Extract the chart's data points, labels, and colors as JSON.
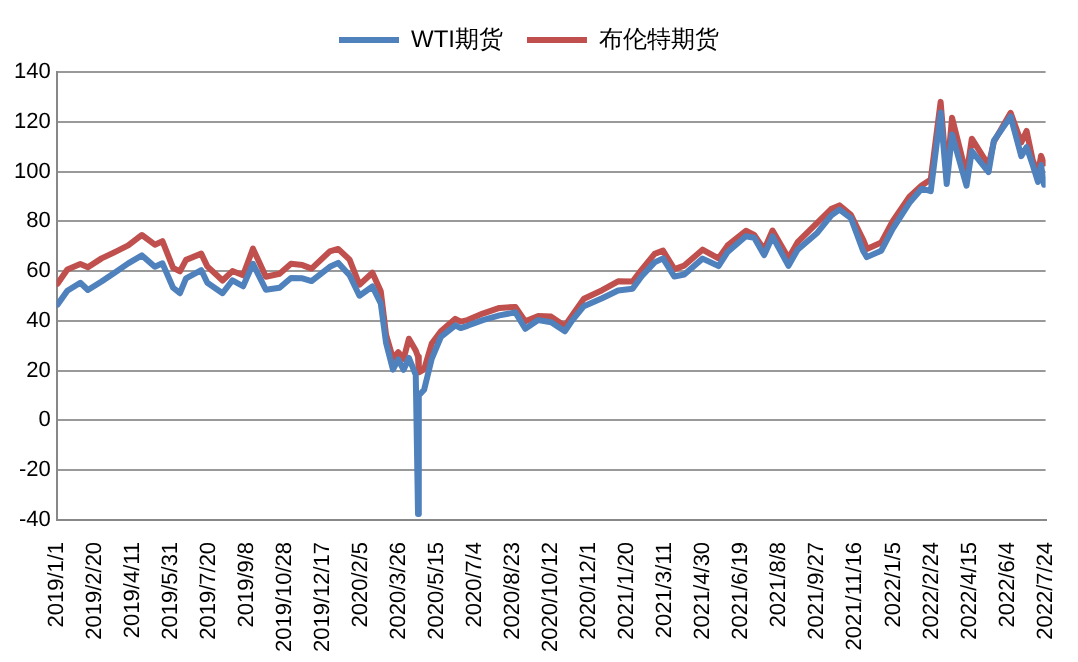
{
  "chart_data": {
    "type": "line",
    "x": [
      "2019-01-02",
      "2019-01-15",
      "2019-02-01",
      "2019-02-11",
      "2019-03-01",
      "2019-03-21",
      "2019-04-05",
      "2019-04-23",
      "2019-05-10",
      "2019-05-20",
      "2019-06-03",
      "2019-06-12",
      "2019-06-20",
      "2019-07-10",
      "2019-07-18",
      "2019-08-07",
      "2019-08-20",
      "2019-09-03",
      "2019-09-16",
      "2019-10-03",
      "2019-10-21",
      "2019-11-05",
      "2019-11-20",
      "2019-12-02",
      "2019-12-26",
      "2020-01-06",
      "2020-01-21",
      "2020-02-03",
      "2020-02-20",
      "2020-03-02",
      "2020-03-09",
      "2020-03-18",
      "2020-03-25",
      "2020-04-01",
      "2020-04-08",
      "2020-04-17",
      "2020-04-20",
      "2020-04-21",
      "2020-04-28",
      "2020-05-08",
      "2020-05-20",
      "2020-06-08",
      "2020-06-15",
      "2020-06-24",
      "2020-07-14",
      "2020-08-05",
      "2020-08-26",
      "2020-09-08",
      "2020-09-25",
      "2020-10-12",
      "2020-10-30",
      "2020-11-09",
      "2020-11-24",
      "2020-12-18",
      "2021-01-08",
      "2021-01-27",
      "2021-02-08",
      "2021-02-25",
      "2021-03-08",
      "2021-03-23",
      "2021-04-05",
      "2021-04-29",
      "2021-05-20",
      "2021-06-01",
      "2021-06-25",
      "2021-07-06",
      "2021-07-19",
      "2021-07-30",
      "2021-08-20",
      "2021-09-01",
      "2021-09-27",
      "2021-10-15",
      "2021-10-26",
      "2021-11-10",
      "2021-11-26",
      "2021-12-01",
      "2021-12-20",
      "2022-01-04",
      "2022-01-26",
      "2022-02-11",
      "2022-02-23",
      "2022-03-08",
      "2022-03-16",
      "2022-03-23",
      "2022-04-11",
      "2022-04-18",
      "2022-05-10",
      "2022-05-17",
      "2022-06-08",
      "2022-06-22",
      "2022-06-29",
      "2022-07-07",
      "2022-07-14",
      "2022-07-18",
      "2022-07-22"
    ],
    "series": [
      {
        "name": "WTI期货",
        "color": "#4f81bd",
        "values": [
          46.5,
          52.1,
          55.3,
          52.4,
          55.8,
          59.9,
          63.1,
          66.3,
          61.7,
          63.1,
          53.3,
          51.1,
          57.1,
          60.4,
          55.3,
          51.1,
          56.3,
          53.9,
          62.9,
          52.5,
          53.3,
          57.2,
          57.1,
          56,
          61.7,
          63.3,
          58.3,
          50.1,
          53.8,
          47,
          31.1,
          20.4,
          24.5,
          20.3,
          25.1,
          18.3,
          -37.6,
          10,
          12.3,
          24.7,
          33.5,
          38.2,
          37.1,
          38,
          40.3,
          42.2,
          43.4,
          36.8,
          40.3,
          39.4,
          35.8,
          40.3,
          45.9,
          49.1,
          52.2,
          52.9,
          57.9,
          63.5,
          65.1,
          57.8,
          58.6,
          65,
          62,
          67.7,
          74,
          73.4,
          66.4,
          73.9,
          62.1,
          68.6,
          75.4,
          82.3,
          84.7,
          81.3,
          68.2,
          65.6,
          68.2,
          77,
          87.4,
          93.1,
          92.1,
          123.7,
          95,
          114.9,
          94.3,
          108.2,
          99.8,
          112.4,
          122.1,
          106.2,
          109.8,
          102.7,
          95.8,
          102.6,
          94.7
        ]
      },
      {
        "name": "布伦特期货",
        "color": "#c0504d",
        "values": [
          54.9,
          60.6,
          62.8,
          61.5,
          65.1,
          68,
          70.3,
          74.5,
          70.6,
          72,
          61.3,
          59.9,
          64.5,
          67,
          61.9,
          56.2,
          60,
          58.3,
          69,
          57.7,
          58.9,
          62.9,
          62.4,
          61,
          67.9,
          68.9,
          64.6,
          54.5,
          59.3,
          51.9,
          34.4,
          24.9,
          27.4,
          24.7,
          32.8,
          28.1,
          25.6,
          19.3,
          20.5,
          30.9,
          35.8,
          40.8,
          39.7,
          40.3,
          42.9,
          45.2,
          45.6,
          39.8,
          41.9,
          41.7,
          37.9,
          42.4,
          48.9,
          52.3,
          55.9,
          55.8,
          60.6,
          66.9,
          68.2,
          60.8,
          62.2,
          68.6,
          65.1,
          70.3,
          76.2,
          74.5,
          68.6,
          76.3,
          65.2,
          71.6,
          79.5,
          84.9,
          86.4,
          82.6,
          72.7,
          68.9,
          71.5,
          80,
          89.9,
          94.4,
          96.8,
          128,
          98,
          121.6,
          98.5,
          113.2,
          102.5,
          112,
          123.6,
          111.7,
          116.3,
          104.7,
          99.1,
          106.3,
          103.2
        ]
      }
    ],
    "xlim": [
      "2019-01-01",
      "2022-07-24"
    ],
    "xticks": [
      {
        "value": "2019-01-01",
        "label": "2019/1/1"
      },
      {
        "value": "2019-02-20",
        "label": "2019/2/20"
      },
      {
        "value": "2019-04-11",
        "label": "2019/4/11"
      },
      {
        "value": "2019-05-31",
        "label": "2019/5/31"
      },
      {
        "value": "2019-07-20",
        "label": "2019/7/20"
      },
      {
        "value": "2019-09-08",
        "label": "2019/9/8"
      },
      {
        "value": "2019-10-28",
        "label": "2019/10/28"
      },
      {
        "value": "2019-12-17",
        "label": "2019/12/17"
      },
      {
        "value": "2020-02-05",
        "label": "2020/2/5"
      },
      {
        "value": "2020-03-26",
        "label": "2020/3/26"
      },
      {
        "value": "2020-05-15",
        "label": "2020/5/15"
      },
      {
        "value": "2020-07-04",
        "label": "2020/7/4"
      },
      {
        "value": "2020-08-23",
        "label": "2020/8/23"
      },
      {
        "value": "2020-10-12",
        "label": "2020/10/12"
      },
      {
        "value": "2020-12-01",
        "label": "2020/12/1"
      },
      {
        "value": "2021-01-20",
        "label": "2021/1/20"
      },
      {
        "value": "2021-03-11",
        "label": "2021/3/11"
      },
      {
        "value": "2021-04-30",
        "label": "2021/4/30"
      },
      {
        "value": "2021-06-19",
        "label": "2021/6/19"
      },
      {
        "value": "2021-08-08",
        "label": "2021/8/8"
      },
      {
        "value": "2021-09-27",
        "label": "2021/9/27"
      },
      {
        "value": "2021-11-16",
        "label": "2021/11/16"
      },
      {
        "value": "2022-01-05",
        "label": "2022/1/5"
      },
      {
        "value": "2022-02-24",
        "label": "2022/2/24"
      },
      {
        "value": "2022-04-15",
        "label": "2022/4/15"
      },
      {
        "value": "2022-06-04",
        "label": "2022/6/4"
      },
      {
        "value": "2022-07-24",
        "label": "2022/7/24"
      }
    ],
    "ylim": [
      -40,
      140
    ],
    "yticks": [
      -40,
      -20,
      0,
      20,
      40,
      60,
      80,
      100,
      120,
      140
    ],
    "grid": "y",
    "legend": "top",
    "marker": "none",
    "line_style": "solid"
  }
}
